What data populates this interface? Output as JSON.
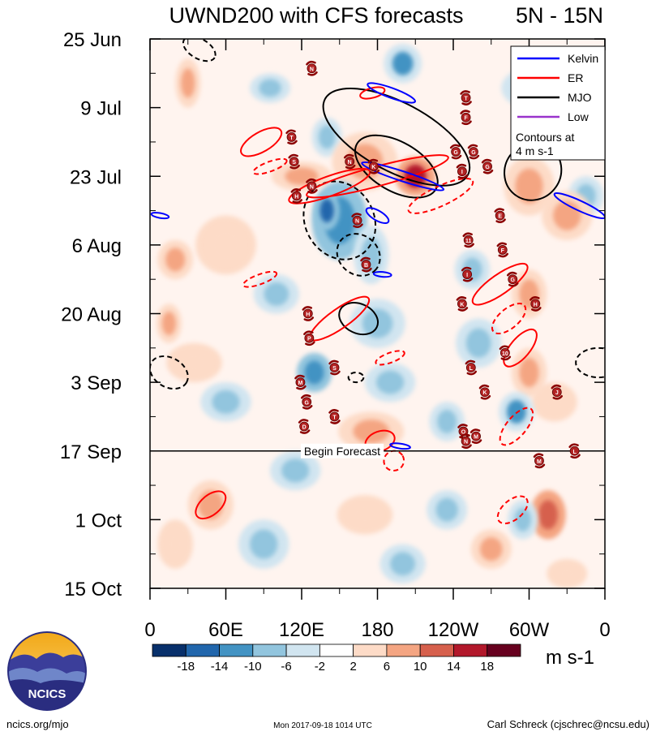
{
  "chart_data": {
    "type": "heatmap",
    "title": "UWND200 with CFS forecasts",
    "region": "5N - 15N",
    "x_tick_labels": [
      "0",
      "60E",
      "120E",
      "180",
      "120W",
      "60W",
      "0"
    ],
    "x_tick_degrees": [
      0,
      60,
      120,
      180,
      240,
      300,
      360
    ],
    "xlim_degrees": [
      0,
      360
    ],
    "y_tick_labels": [
      "25 Jun",
      "9 Jul",
      "23 Jul",
      "6 Aug",
      "20 Aug",
      "3 Sep",
      "17 Sep",
      "1 Oct",
      "15 Oct"
    ],
    "y_tick_days": [
      0,
      14,
      28,
      42,
      56,
      70,
      84,
      98,
      112
    ],
    "ylim_days": [
      0,
      112
    ],
    "forecast_start_day": 84,
    "forecast_label": "Begin Forecast",
    "colorbar": {
      "units": "m s-1",
      "tick_labels": [
        "-18",
        "-14",
        "-10",
        "-6",
        "-2",
        "2",
        "6",
        "10",
        "14",
        "18"
      ],
      "colors": [
        "#08306b",
        "#2166ac",
        "#4393c3",
        "#92c5de",
        "#d1e5f0",
        "#ffffff",
        "#fddbc7",
        "#f4a582",
        "#d6604d",
        "#b2182b",
        "#67001f"
      ]
    },
    "legend": [
      {
        "label": "Kelvin",
        "color": "#0000ff"
      },
      {
        "label": "ER",
        "color": "#ff0000"
      },
      {
        "label": "MJO",
        "color": "#000000"
      },
      {
        "label": "Low",
        "color": "#9933cc"
      }
    ],
    "legend_note": [
      "Contours at",
      "4 m s-1"
    ],
    "anomaly_patches": [
      {
        "lon": 30,
        "day": 9,
        "rlon": 10,
        "rday": 5,
        "v": 10
      },
      {
        "lon": 95,
        "day": 10,
        "rlon": 16,
        "rday": 3,
        "v": -8
      },
      {
        "lon": 300,
        "day": 10,
        "rlon": 22,
        "rday": 4,
        "v": -6
      },
      {
        "lon": 200,
        "day": 5,
        "rlon": 15,
        "rday": 4,
        "v": -10
      },
      {
        "lon": 140,
        "day": 20,
        "rlon": 12,
        "rday": 4,
        "v": -8
      },
      {
        "lon": 210,
        "day": 28,
        "rlon": 16,
        "rday": 4,
        "v": 18
      },
      {
        "lon": 170,
        "day": 25,
        "rlon": 26,
        "rday": 6,
        "v": 10
      },
      {
        "lon": 120,
        "day": 28,
        "rlon": 24,
        "rday": 3,
        "v": 8
      },
      {
        "lon": 300,
        "day": 30,
        "rlon": 20,
        "rday": 6,
        "v": 10
      },
      {
        "lon": 345,
        "day": 32,
        "rlon": 14,
        "rday": 4,
        "v": -8
      },
      {
        "lon": 330,
        "day": 36,
        "rlon": 20,
        "rday": 5,
        "v": 8
      },
      {
        "lon": 150,
        "day": 37,
        "rlon": 22,
        "rday": 8,
        "v": -12
      },
      {
        "lon": 140,
        "day": 35,
        "rlon": 10,
        "rday": 4,
        "v": -14
      },
      {
        "lon": 175,
        "day": 44,
        "rlon": 14,
        "rday": 6,
        "v": -8
      },
      {
        "lon": 60,
        "day": 42,
        "rlon": 24,
        "rday": 6,
        "v": 6
      },
      {
        "lon": 20,
        "day": 45,
        "rlon": 14,
        "rday": 4,
        "v": 8
      },
      {
        "lon": 255,
        "day": 47,
        "rlon": 14,
        "rday": 4,
        "v": -6
      },
      {
        "lon": 100,
        "day": 52,
        "rlon": 18,
        "rday": 4,
        "v": -6
      },
      {
        "lon": 300,
        "day": 52,
        "rlon": 14,
        "rday": 5,
        "v": 8
      },
      {
        "lon": 15,
        "day": 58,
        "rlon": 10,
        "rday": 4,
        "v": 10
      },
      {
        "lon": 180,
        "day": 58,
        "rlon": 22,
        "rday": 5,
        "v": -8
      },
      {
        "lon": 260,
        "day": 62,
        "rlon": 18,
        "rday": 5,
        "v": -6
      },
      {
        "lon": 35,
        "day": 66,
        "rlon": 22,
        "rday": 4,
        "v": 6
      },
      {
        "lon": 130,
        "day": 68,
        "rlon": 14,
        "rday": 4,
        "v": -12
      },
      {
        "lon": 190,
        "day": 70,
        "rlon": 20,
        "rday": 4,
        "v": -8
      },
      {
        "lon": 300,
        "day": 68,
        "rlon": 14,
        "rday": 5,
        "v": 8
      },
      {
        "lon": 320,
        "day": 74,
        "rlon": 18,
        "rday": 4,
        "v": 6
      },
      {
        "lon": 60,
        "day": 74,
        "rlon": 20,
        "rday": 4,
        "v": -6
      },
      {
        "lon": 175,
        "day": 80,
        "rlon": 26,
        "rday": 4,
        "v": 10
      },
      {
        "lon": 235,
        "day": 78,
        "rlon": 14,
        "rday": 4,
        "v": -8
      },
      {
        "lon": 290,
        "day": 76,
        "rlon": 14,
        "rday": 4,
        "v": -10
      },
      {
        "lon": 115,
        "day": 88,
        "rlon": 20,
        "rday": 4,
        "v": -6
      },
      {
        "lon": 48,
        "day": 95,
        "rlon": 18,
        "rday": 5,
        "v": 8
      },
      {
        "lon": 315,
        "day": 97,
        "rlon": 14,
        "rday": 5,
        "v": 14
      },
      {
        "lon": 295,
        "day": 98,
        "rlon": 12,
        "rday": 4,
        "v": -8
      },
      {
        "lon": 170,
        "day": 97,
        "rlon": 22,
        "rday": 4,
        "v": 6
      },
      {
        "lon": 235,
        "day": 96,
        "rlon": 16,
        "rday": 4,
        "v": -6
      },
      {
        "lon": 90,
        "day": 103,
        "rlon": 20,
        "rday": 5,
        "v": -6
      },
      {
        "lon": 20,
        "day": 103,
        "rlon": 14,
        "rday": 5,
        "v": 6
      },
      {
        "lon": 270,
        "day": 104,
        "rlon": 16,
        "rday": 4,
        "v": 8
      },
      {
        "lon": 200,
        "day": 107,
        "rlon": 18,
        "rday": 4,
        "v": -6
      },
      {
        "lon": 330,
        "day": 109,
        "rlon": 16,
        "rday": 3,
        "v": 6
      }
    ],
    "contours": [
      {
        "kind": "MJO",
        "dashed": false,
        "lon": 195,
        "day": 20,
        "rlon": 64,
        "rday": 7,
        "rot": 28
      },
      {
        "kind": "MJO",
        "dashed": false,
        "lon": 195,
        "day": 26,
        "rlon": 36,
        "rday": 5,
        "rot": 30
      },
      {
        "kind": "MJO",
        "dashed": false,
        "lon": 303,
        "day": 27,
        "rlon": 22,
        "rday": 6,
        "rot": 40
      },
      {
        "kind": "MJO",
        "dashed": true,
        "lon": 150,
        "day": 37,
        "rlon": 32,
        "rday": 7,
        "rot": 60
      },
      {
        "kind": "MJO",
        "dashed": true,
        "lon": 165,
        "day": 44,
        "rlon": 18,
        "rday": 4,
        "rot": 40
      },
      {
        "kind": "MJO",
        "dashed": false,
        "lon": 165,
        "day": 57,
        "rlon": 16,
        "rday": 3,
        "rot": 25
      },
      {
        "kind": "MJO",
        "dashed": true,
        "lon": 355,
        "day": 66,
        "rlon": 18,
        "rday": 3,
        "rot": 0
      },
      {
        "kind": "MJO",
        "dashed": true,
        "lon": 15,
        "day": 68,
        "rlon": 16,
        "rday": 3,
        "rot": 30
      },
      {
        "kind": "MJO",
        "dashed": true,
        "lon": 39,
        "day": 2,
        "rlon": 14,
        "rday": 2,
        "rot": 30
      },
      {
        "kind": "MJO",
        "dashed": true,
        "lon": 163,
        "day": 69,
        "rlon": 6,
        "rday": 1,
        "rot": 0
      },
      {
        "kind": "ER",
        "dashed": false,
        "lon": 88,
        "day": 21,
        "rlon": 18,
        "rday": 2,
        "rot": -30
      },
      {
        "kind": "ER",
        "dashed": false,
        "lon": 180,
        "day": 28,
        "rlon": 58,
        "rday": 2,
        "rot": -15
      },
      {
        "kind": "ER",
        "dashed": false,
        "lon": 142,
        "day": 30,
        "rlon": 34,
        "rday": 2,
        "rot": -20
      },
      {
        "kind": "ER",
        "dashed": true,
        "lon": 95,
        "day": 26,
        "rlon": 14,
        "rday": 1,
        "rot": -20
      },
      {
        "kind": "ER",
        "dashed": true,
        "lon": 230,
        "day": 32,
        "rlon": 28,
        "rday": 2,
        "rot": -25
      },
      {
        "kind": "ER",
        "dashed": true,
        "lon": 87,
        "day": 49,
        "rlon": 14,
        "rday": 1,
        "rot": -20
      },
      {
        "kind": "ER",
        "dashed": false,
        "lon": 277,
        "day": 50,
        "rlon": 26,
        "rday": 2,
        "rot": -35
      },
      {
        "kind": "ER",
        "dashed": false,
        "lon": 150,
        "day": 57,
        "rlon": 28,
        "rday": 2,
        "rot": -35
      },
      {
        "kind": "ER",
        "dashed": true,
        "lon": 284,
        "day": 57,
        "rlon": 16,
        "rday": 2,
        "rot": -40
      },
      {
        "kind": "ER",
        "dashed": false,
        "lon": 293,
        "day": 63,
        "rlon": 18,
        "rday": 2,
        "rot": -50
      },
      {
        "kind": "ER",
        "dashed": true,
        "lon": 190,
        "day": 65,
        "rlon": 12,
        "rday": 1,
        "rot": -20
      },
      {
        "kind": "ER",
        "dashed": true,
        "lon": 290,
        "day": 79,
        "rlon": 18,
        "rday": 2,
        "rot": -50
      },
      {
        "kind": "ER",
        "dashed": false,
        "lon": 182,
        "day": 82,
        "rlon": 12,
        "rday": 2,
        "rot": -20
      },
      {
        "kind": "ER",
        "dashed": true,
        "lon": 193,
        "day": 86,
        "rlon": 8,
        "rday": 2,
        "rot": -30
      },
      {
        "kind": "ER",
        "dashed": false,
        "lon": 48,
        "day": 95,
        "rlon": 14,
        "rday": 2,
        "rot": -40
      },
      {
        "kind": "ER",
        "dashed": true,
        "lon": 287,
        "day": 96,
        "rlon": 14,
        "rday": 2,
        "rot": -40
      },
      {
        "kind": "ER",
        "dashed": false,
        "lon": 176,
        "day": 11,
        "rlon": 10,
        "rday": 1,
        "rot": -15
      },
      {
        "kind": "Kelvin",
        "dashed": false,
        "lon": 191,
        "day": 11,
        "rlon": 20,
        "rday": 1,
        "rot": 20
      },
      {
        "kind": "Kelvin",
        "dashed": false,
        "lon": 200,
        "day": 28,
        "rlon": 34,
        "rday": 1,
        "rot": 18
      },
      {
        "kind": "Kelvin",
        "dashed": false,
        "lon": 340,
        "day": 34,
        "rlon": 22,
        "rday": 1,
        "rot": 25
      },
      {
        "kind": "Kelvin",
        "dashed": false,
        "lon": 180,
        "day": 36,
        "rlon": 10,
        "rday": 1,
        "rot": 30
      },
      {
        "kind": "Kelvin",
        "dashed": false,
        "lon": 184,
        "day": 48,
        "rlon": 7,
        "rday": 0.5,
        "rot": 5
      },
      {
        "kind": "Kelvin",
        "dashed": false,
        "lon": 198,
        "day": 83,
        "rlon": 8,
        "rday": 0.5,
        "rot": 8
      },
      {
        "kind": "Kelvin",
        "dashed": false,
        "lon": 8,
        "day": 36,
        "rlon": 7,
        "rday": 0.5,
        "rot": 10
      }
    ],
    "storms": [
      {
        "label": "N",
        "lon": 128,
        "day": 6
      },
      {
        "label": "T",
        "lon": 112,
        "day": 20
      },
      {
        "label": "S",
        "lon": 114,
        "day": 25
      },
      {
        "label": "N",
        "lon": 128,
        "day": 30
      },
      {
        "label": "H",
        "lon": 116,
        "day": 32
      },
      {
        "label": "N",
        "lon": 158,
        "day": 25
      },
      {
        "label": "K",
        "lon": 177,
        "day": 26
      },
      {
        "label": "N",
        "lon": 164,
        "day": 37
      },
      {
        "label": "B",
        "lon": 171,
        "day": 46
      },
      {
        "label": "H",
        "lon": 125,
        "day": 56
      },
      {
        "label": "P",
        "lon": 126,
        "day": 61
      },
      {
        "label": "S",
        "lon": 146,
        "day": 67
      },
      {
        "label": "M",
        "lon": 119,
        "day": 70
      },
      {
        "label": "G",
        "lon": 124,
        "day": 74
      },
      {
        "label": "T",
        "lon": 146,
        "day": 77
      },
      {
        "label": "D",
        "lon": 122,
        "day": 79
      },
      {
        "label": "T",
        "lon": 250,
        "day": 12
      },
      {
        "label": "F",
        "lon": 250,
        "day": 16
      },
      {
        "label": "G",
        "lon": 242,
        "day": 23
      },
      {
        "label": "G",
        "lon": 256,
        "day": 23
      },
      {
        "label": "I",
        "lon": 247,
        "day": 27
      },
      {
        "label": "G",
        "lon": 267,
        "day": 26
      },
      {
        "label": "E",
        "lon": 277,
        "day": 36
      },
      {
        "label": "11",
        "lon": 252,
        "day": 41
      },
      {
        "label": "F",
        "lon": 279,
        "day": 43
      },
      {
        "label": "I",
        "lon": 251,
        "day": 48
      },
      {
        "label": "G",
        "lon": 287,
        "day": 49
      },
      {
        "label": "K",
        "lon": 247,
        "day": 54
      },
      {
        "label": "H",
        "lon": 305,
        "day": 54
      },
      {
        "label": "10",
        "lon": 281,
        "day": 64
      },
      {
        "label": "L",
        "lon": 254,
        "day": 67
      },
      {
        "label": "K",
        "lon": 265,
        "day": 72
      },
      {
        "label": "J",
        "lon": 322,
        "day": 72
      },
      {
        "label": "O",
        "lon": 248,
        "day": 80
      },
      {
        "label": "N",
        "lon": 250,
        "day": 82
      },
      {
        "label": "M",
        "lon": 258,
        "day": 81
      },
      {
        "label": "M",
        "lon": 308,
        "day": 86
      },
      {
        "label": "L",
        "lon": 336,
        "day": 84
      }
    ]
  },
  "footer": {
    "logo_text": "NCICS",
    "site": "ncics.org/mjo",
    "timestamp": "Mon 2017-09-18 1014 UTC",
    "author": "Carl Schreck (cjschrec@ncsu.edu)"
  }
}
